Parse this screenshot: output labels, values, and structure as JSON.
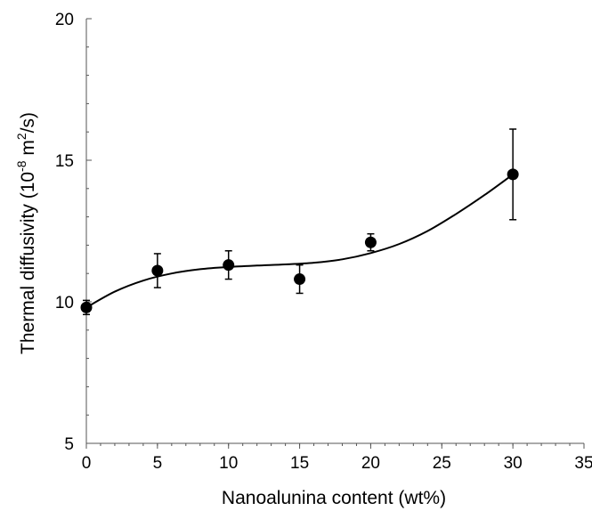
{
  "chart_data": {
    "type": "scatter",
    "title": "",
    "xlabel": "Nanoalunina content (wt%)",
    "ylabel": {
      "prefix": "Thermal diffusivity (10",
      "exp1": "-8",
      "mid": " m",
      "exp2": "2",
      "suffix": "/s)"
    },
    "xlim": [
      0,
      35
    ],
    "ylim": [
      5,
      20
    ],
    "xticks": [
      0,
      5,
      10,
      15,
      20,
      25,
      30,
      35
    ],
    "yticks": [
      5,
      10,
      15,
      20
    ],
    "x_minor_step": 1,
    "y_minor_step": 1,
    "grid": false,
    "series": [
      {
        "marker": "filled-circle",
        "color": "#000000",
        "x": [
          0,
          5,
          10,
          15,
          20,
          30
        ],
        "y": [
          9.8,
          11.1,
          11.3,
          10.8,
          12.1,
          14.5
        ],
        "yerr": [
          0.25,
          0.6,
          0.5,
          0.5,
          0.3,
          1.6
        ]
      }
    ],
    "fit_curve": {
      "type": "polynomial",
      "color": "#000000",
      "x": [
        0,
        2,
        4,
        6,
        8,
        10,
        12,
        14,
        16,
        18,
        20,
        22,
        24,
        26,
        28,
        30
      ],
      "y": [
        9.8,
        10.36,
        10.75,
        11.0,
        11.15,
        11.23,
        11.28,
        11.32,
        11.38,
        11.5,
        11.72,
        12.04,
        12.5,
        13.1,
        13.77,
        14.5
      ]
    }
  }
}
